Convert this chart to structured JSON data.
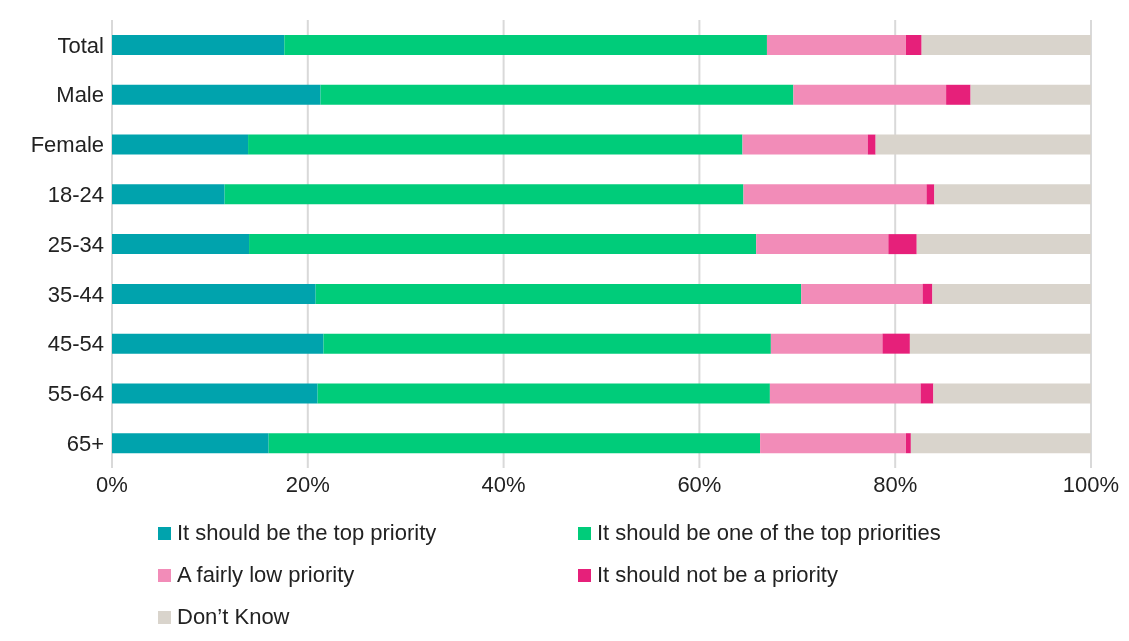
{
  "chart_data": {
    "type": "bar",
    "orientation": "horizontal",
    "stacked": true,
    "categories": [
      "Total",
      "Male",
      "Female",
      "18-24",
      "25-34",
      "35-44",
      "45-54",
      "55-64",
      "65+"
    ],
    "series": [
      {
        "name": "It should be the top priority",
        "color": "#00a3ad",
        "values": [
          17.6,
          21.3,
          13.9,
          11.5,
          14.0,
          20.8,
          21.6,
          21.0,
          16.0
        ]
      },
      {
        "name": "It should be one of the top priorities",
        "color": "#00cc7a",
        "values": [
          49.3,
          48.3,
          50.5,
          53.0,
          51.8,
          49.6,
          45.7,
          46.2,
          50.2
        ]
      },
      {
        "name": "A fairly low priority",
        "color": "#f28cb8",
        "values": [
          14.2,
          15.6,
          12.8,
          18.7,
          13.5,
          12.4,
          11.4,
          15.4,
          14.9
        ]
      },
      {
        "name": "It should not be a priority",
        "color": "#e6207a",
        "values": [
          1.6,
          2.5,
          0.8,
          0.8,
          2.9,
          1.0,
          2.8,
          1.3,
          0.5
        ]
      },
      {
        "name": "Don’t Know",
        "color": "#d9d4cc",
        "values": [
          17.3,
          12.3,
          22.0,
          16.0,
          17.8,
          16.2,
          18.5,
          16.1,
          18.4
        ]
      }
    ],
    "xlim": [
      0,
      100
    ],
    "xticks": [
      {
        "value": 0,
        "label": "0%"
      },
      {
        "value": 20,
        "label": "20%"
      },
      {
        "value": 40,
        "label": "40%"
      },
      {
        "value": 60,
        "label": "60%"
      },
      {
        "value": 80,
        "label": "80%"
      },
      {
        "value": 100,
        "label": "100%"
      }
    ],
    "grid": "x",
    "legend": "bottom"
  }
}
